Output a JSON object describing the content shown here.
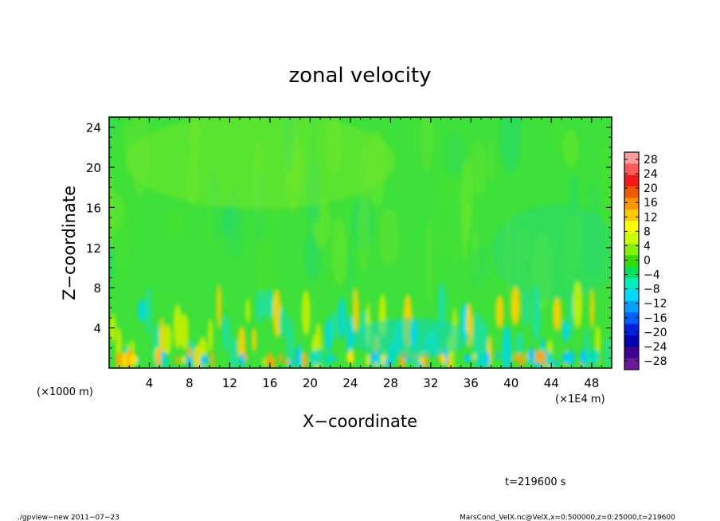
{
  "chart_data": {
    "type": "heatmap",
    "title": "zonal velocity",
    "xlabel": "X−coordinate",
    "ylabel": "Z−coordinate",
    "x_unit_left": "(×1000 m)",
    "x_unit_right": "(×1E4 m)",
    "xlim": [
      0,
      50
    ],
    "ylim": [
      0,
      25
    ],
    "x_ticks": [
      4,
      8,
      12,
      16,
      20,
      24,
      28,
      32,
      36,
      40,
      44,
      48
    ],
    "x_tick_labels": [
      "4",
      "8",
      "12",
      "16",
      "20",
      "24",
      "28",
      "32",
      "36",
      "40",
      "44",
      "48"
    ],
    "y_ticks": [
      4,
      8,
      12,
      16,
      20,
      24
    ],
    "y_tick_labels": [
      "4",
      "8",
      "12",
      "16",
      "20",
      "24"
    ],
    "colorbar": {
      "labels": [
        "28",
        "24",
        "20",
        "16",
        "12",
        "8",
        "4",
        "0",
        "−4",
        "−8",
        "−12",
        "−16",
        "−20",
        "−24",
        "−28"
      ],
      "colors": [
        "#ff9d9d",
        "#ff5a5a",
        "#f01818",
        "#f05a00",
        "#ff9500",
        "#ffcc00",
        "#ffff00",
        "#ccff00",
        "#88ee00",
        "#33dd00",
        "#00e060",
        "#00ecc0",
        "#00d8ff",
        "#00a0ff",
        "#0060ff",
        "#0020e0",
        "#0000b0",
        "#400090",
        "#6a1b9a"
      ]
    },
    "field_description_values": {
      "lower_layer_top": 8,
      "dominant_value": 0
    },
    "time_label": "t=219600 s",
    "footer_left": "./gpview−new   2011−07−23",
    "footer_right": "MarsCond_VelX.nc@VelX,x=0:500000,z=0:25000,t=219600"
  }
}
